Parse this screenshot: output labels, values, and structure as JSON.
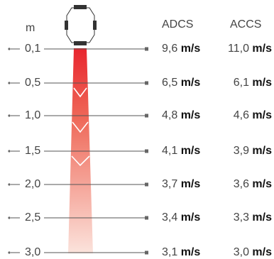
{
  "header": {
    "distance_unit": "m",
    "columns": [
      "ADCS",
      "ACCS"
    ]
  },
  "speed_unit": "m/s",
  "rows": [
    {
      "distance": "0,1",
      "adcs": "9,6",
      "accs": "11,0"
    },
    {
      "distance": "0,5",
      "adcs": "6,5",
      "accs": "6,1"
    },
    {
      "distance": "1,0",
      "adcs": "4,8",
      "accs": "4,6"
    },
    {
      "distance": "1,5",
      "adcs": "4,1",
      "accs": "3,9"
    },
    {
      "distance": "2,0",
      "adcs": "3,7",
      "accs": "3,6"
    },
    {
      "distance": "2,5",
      "adcs": "3,4",
      "accs": "3,3"
    },
    {
      "distance": "3,0",
      "adcs": "3,1",
      "accs": "3,0"
    }
  ],
  "colors": {
    "jet_top": "#e8262e",
    "jet_bottom": "#fbe3dc",
    "line": "#555555"
  },
  "icons": {
    "diffuser": "diffuser-icon"
  }
}
